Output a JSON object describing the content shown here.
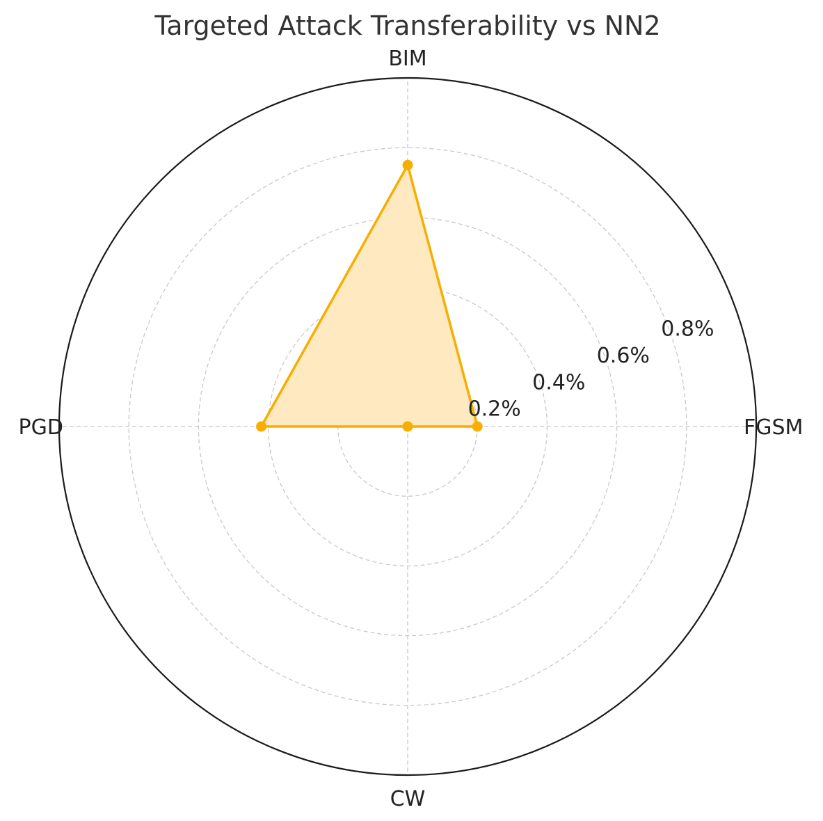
{
  "chart_data": {
    "type": "radar",
    "title": "Targeted Attack Transferability vs NN2",
    "categories": [
      "FGSM",
      "BIM",
      "PGD",
      "CW"
    ],
    "series": [
      {
        "values": [
          0.2,
          0.75,
          0.42,
          0.0
        ],
        "color": "#F7AE00",
        "fill": "#FFE9C0"
      }
    ],
    "rlim": [
      0,
      1.0
    ],
    "r_ticks": [
      0.2,
      0.4,
      0.6,
      0.8
    ],
    "r_tick_labels": [
      "0.2%",
      "0.4%",
      "0.6%",
      "0.8%"
    ],
    "grid": true,
    "legend": "none"
  }
}
